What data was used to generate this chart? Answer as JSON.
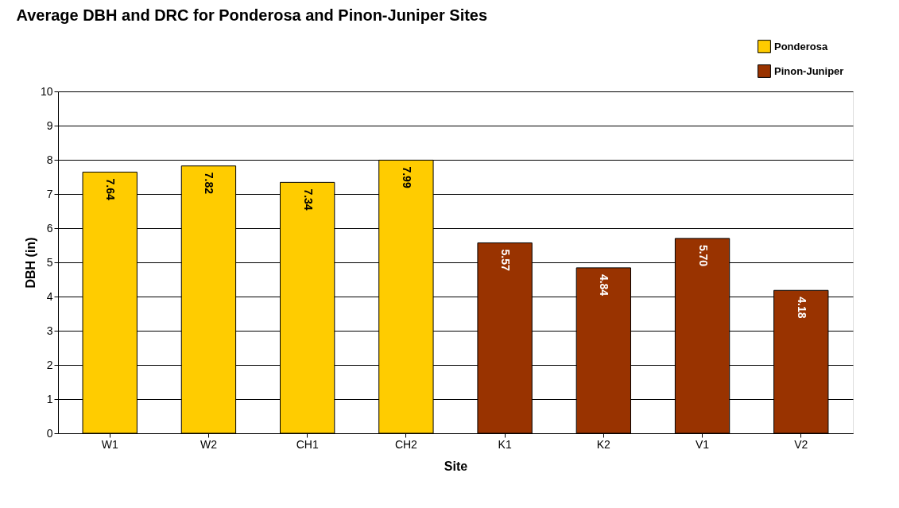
{
  "chart_data": {
    "type": "bar",
    "title": "Average DBH and DRC for Ponderosa and Pinon-Juniper Sites",
    "xlabel": "Site",
    "ylabel": "DBH (in)",
    "categories": [
      "W1",
      "W2",
      "CH1",
      "CH2",
      "K1",
      "K2",
      "V1",
      "V2"
    ],
    "series": [
      {
        "name": "Ponderosa",
        "color": "#ffcc00",
        "values": [
          7.64,
          7.82,
          7.34,
          7.99,
          null,
          null,
          null,
          null
        ],
        "value_labels": [
          "7.64",
          "7.82",
          "7.34",
          "7.99",
          null,
          null,
          null,
          null
        ]
      },
      {
        "name": "Pinon-Juniper",
        "color": "#993300",
        "values": [
          null,
          null,
          null,
          null,
          5.57,
          4.84,
          5.7,
          4.18
        ],
        "value_labels": [
          null,
          null,
          null,
          null,
          "5.57",
          "4.84",
          "5.70",
          "4.18"
        ]
      }
    ],
    "ylim": [
      0,
      10
    ],
    "yticks": [
      0,
      1,
      2,
      3,
      4,
      5,
      6,
      7,
      8,
      9,
      10
    ],
    "grid": "y",
    "legend": "top right"
  }
}
